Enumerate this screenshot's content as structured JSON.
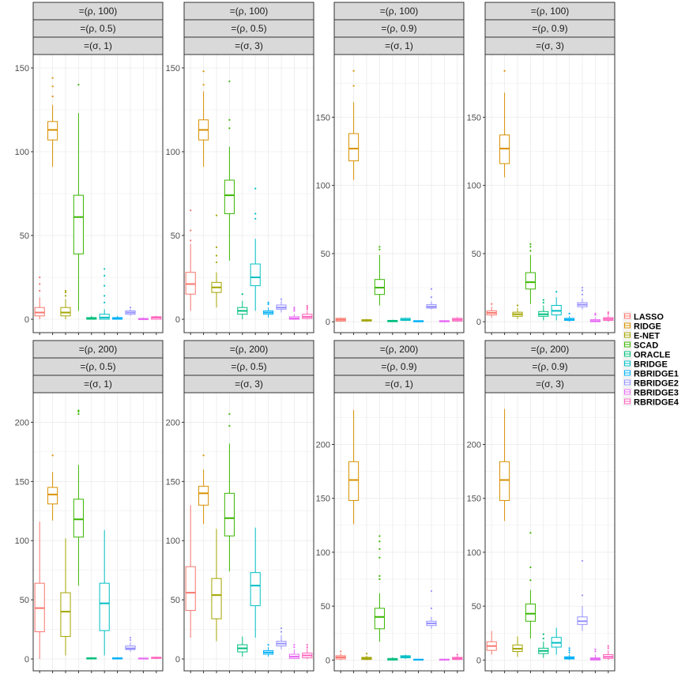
{
  "chart_data": [
    {
      "type": "box",
      "strips": [
        "=(ρ, 100)",
        "=(ρ, 0.5)",
        "=(σ, 1)"
      ],
      "yticks": [
        0,
        50,
        100,
        150
      ],
      "ylim": [
        -8,
        158
      ],
      "boxes": [
        {
          "name": "LASSO",
          "q1": 2,
          "median": 4,
          "q3": 7,
          "wlo": 0,
          "whi": 13,
          "outliers": [
            17,
            21,
            25
          ]
        },
        {
          "name": "RIDGE",
          "q1": 107,
          "median": 113,
          "q3": 118,
          "wlo": 91,
          "whi": 128,
          "outliers": [
            133,
            139,
            144
          ]
        },
        {
          "name": "E-NET",
          "q1": 2,
          "median": 4,
          "q3": 7,
          "wlo": 0,
          "whi": 12,
          "outliers": [
            14,
            16,
            17
          ]
        },
        {
          "name": "SCAD",
          "q1": 39,
          "median": 61,
          "q3": 74,
          "wlo": 5,
          "whi": 123,
          "outliers": [
            140
          ]
        },
        {
          "name": "ORACLE",
          "q1": 0,
          "median": 0.5,
          "q3": 1,
          "wlo": 0,
          "whi": 2,
          "outliers": []
        },
        {
          "name": "BRIDGE",
          "q1": 0,
          "median": 1,
          "q3": 3,
          "wlo": 0,
          "whi": 6,
          "outliers": [
            10,
            14,
            20,
            26,
            30
          ]
        },
        {
          "name": "RBRIDGE1",
          "q1": 0,
          "median": 0.5,
          "q3": 1,
          "wlo": 0,
          "whi": 2,
          "outliers": []
        },
        {
          "name": "RBRIDGE2",
          "q1": 3,
          "median": 4,
          "q3": 5,
          "wlo": 2,
          "whi": 6,
          "outliers": [
            7
          ]
        },
        {
          "name": "RBRIDGE3",
          "q1": 0,
          "median": 0,
          "q3": 0.5,
          "wlo": 0,
          "whi": 1,
          "outliers": []
        },
        {
          "name": "RBRIDGE4",
          "q1": 0,
          "median": 1,
          "q3": 1.5,
          "wlo": 0,
          "whi": 2,
          "outliers": []
        }
      ]
    },
    {
      "type": "box",
      "strips": [
        "=(ρ, 100)",
        "=(ρ, 0.5)",
        "=(σ, 3)"
      ],
      "yticks": [
        0,
        50,
        100,
        150
      ],
      "ylim": [
        -8,
        158
      ],
      "boxes": [
        {
          "name": "LASSO",
          "q1": 15,
          "median": 21,
          "q3": 28,
          "wlo": 5,
          "whi": 45,
          "outliers": [
            47,
            53,
            65
          ]
        },
        {
          "name": "RIDGE",
          "q1": 107,
          "median": 113,
          "q3": 119,
          "wlo": 91,
          "whi": 136,
          "outliers": [
            140,
            148
          ]
        },
        {
          "name": "E-NET",
          "q1": 16,
          "median": 19,
          "q3": 22,
          "wlo": 7,
          "whi": 28,
          "outliers": [
            34,
            38,
            43,
            62
          ]
        },
        {
          "name": "SCAD",
          "q1": 63,
          "median": 74,
          "q3": 83,
          "wlo": 35,
          "whi": 103,
          "outliers": [
            114,
            119,
            142
          ]
        },
        {
          "name": "ORACLE",
          "q1": 3,
          "median": 5,
          "q3": 7,
          "wlo": 0,
          "whi": 11,
          "outliers": [
            15
          ]
        },
        {
          "name": "BRIDGE",
          "q1": 20,
          "median": 25,
          "q3": 33,
          "wlo": 5,
          "whi": 48,
          "outliers": [
            60,
            63,
            78
          ]
        },
        {
          "name": "RBRIDGE1",
          "q1": 3,
          "median": 4,
          "q3": 5,
          "wlo": 1,
          "whi": 7,
          "outliers": [
            9,
            10
          ]
        },
        {
          "name": "RBRIDGE2",
          "q1": 6,
          "median": 7,
          "q3": 8.5,
          "wlo": 4,
          "whi": 11,
          "outliers": [
            12
          ]
        },
        {
          "name": "RBRIDGE3",
          "q1": 0,
          "median": 0.5,
          "q3": 1.5,
          "wlo": 0,
          "whi": 3,
          "outliers": [
            5,
            6,
            7
          ]
        },
        {
          "name": "RBRIDGE4",
          "q1": 0.5,
          "median": 1.5,
          "q3": 3,
          "wlo": 0,
          "whi": 5,
          "outliers": [
            6,
            7,
            8
          ]
        }
      ]
    },
    {
      "type": "box",
      "strips": [
        "=(ρ, 100)",
        "=(ρ, 0.9)",
        "=(σ, 1)"
      ],
      "yticks": [
        0,
        50,
        100,
        150
      ],
      "ylim": [
        -8,
        196
      ],
      "boxes": [
        {
          "name": "LASSO",
          "q1": 0.5,
          "median": 1.5,
          "q3": 2.5,
          "wlo": 0,
          "whi": 3,
          "outliers": []
        },
        {
          "name": "RIDGE",
          "q1": 118,
          "median": 127,
          "q3": 138,
          "wlo": 104,
          "whi": 161,
          "outliers": [
            173,
            184
          ]
        },
        {
          "name": "E-NET",
          "q1": 0.5,
          "median": 1,
          "q3": 1.5,
          "wlo": 0,
          "whi": 2,
          "outliers": []
        },
        {
          "name": "SCAD",
          "q1": 20,
          "median": 25,
          "q3": 31,
          "wlo": 12,
          "whi": 49,
          "outliers": [
            53,
            55
          ]
        },
        {
          "name": "ORACLE",
          "q1": 0,
          "median": 0.5,
          "q3": 1,
          "wlo": 0,
          "whi": 1.5,
          "outliers": []
        },
        {
          "name": "BRIDGE",
          "q1": 1,
          "median": 1.5,
          "q3": 2.5,
          "wlo": 0.5,
          "whi": 3,
          "outliers": []
        },
        {
          "name": "RBRIDGE1",
          "q1": 0,
          "median": 0.3,
          "q3": 0.8,
          "wlo": 0,
          "whi": 1,
          "outliers": []
        },
        {
          "name": "RBRIDGE2",
          "q1": 10,
          "median": 11,
          "q3": 12.5,
          "wlo": 9,
          "whi": 15,
          "outliers": [
            18,
            24
          ]
        },
        {
          "name": "RBRIDGE3",
          "q1": 0,
          "median": 0.3,
          "q3": 0.8,
          "wlo": 0,
          "whi": 1,
          "outliers": []
        },
        {
          "name": "RBRIDGE4",
          "q1": 0.5,
          "median": 1.5,
          "q3": 2.5,
          "wlo": 0,
          "whi": 3.5,
          "outliers": []
        }
      ]
    },
    {
      "type": "box",
      "strips": [
        "=(ρ, 100)",
        "=(ρ, 0.9)",
        "=(σ, 3)"
      ],
      "yticks": [
        0,
        50,
        100,
        150
      ],
      "ylim": [
        -8,
        196
      ],
      "boxes": [
        {
          "name": "LASSO",
          "q1": 5,
          "median": 6.5,
          "q3": 8,
          "wlo": 3,
          "whi": 11,
          "outliers": [
            13
          ]
        },
        {
          "name": "RIDGE",
          "q1": 116,
          "median": 127,
          "q3": 137,
          "wlo": 106,
          "whi": 168,
          "outliers": [
            184
          ]
        },
        {
          "name": "E-NET",
          "q1": 4,
          "median": 5.5,
          "q3": 7,
          "wlo": 2,
          "whi": 10,
          "outliers": [
            12
          ]
        },
        {
          "name": "SCAD",
          "q1": 24,
          "median": 29,
          "q3": 36,
          "wlo": 13,
          "whi": 49,
          "outliers": [
            52,
            55,
            57
          ]
        },
        {
          "name": "ORACLE",
          "q1": 4,
          "median": 5.5,
          "q3": 7.5,
          "wlo": 1,
          "whi": 12,
          "outliers": [
            14,
            16
          ]
        },
        {
          "name": "BRIDGE",
          "q1": 5,
          "median": 8,
          "q3": 12,
          "wlo": 1,
          "whi": 18,
          "outliers": [
            22
          ]
        },
        {
          "name": "RBRIDGE1",
          "q1": 1,
          "median": 1.5,
          "q3": 2.5,
          "wlo": 0,
          "whi": 4,
          "outliers": [
            6
          ]
        },
        {
          "name": "RBRIDGE2",
          "q1": 11,
          "median": 12.5,
          "q3": 14,
          "wlo": 9,
          "whi": 17,
          "outliers": [
            20,
            23,
            25
          ]
        },
        {
          "name": "RBRIDGE3",
          "q1": 0,
          "median": 0.5,
          "q3": 1.5,
          "wlo": 0,
          "whi": 3,
          "outliers": [
            5,
            6
          ]
        },
        {
          "name": "RBRIDGE4",
          "q1": 1,
          "median": 2,
          "q3": 3,
          "wlo": 0,
          "whi": 5,
          "outliers": [
            6,
            7
          ]
        }
      ]
    },
    {
      "type": "box",
      "strips": [
        "=(ρ, 200)",
        "=(ρ, 0.5)",
        "=(σ, 1)"
      ],
      "yticks": [
        0,
        50,
        100,
        150,
        200
      ],
      "ylim": [
        -10,
        225
      ],
      "boxes": [
        {
          "name": "LASSO",
          "q1": 23,
          "median": 43,
          "q3": 64,
          "wlo": 0,
          "whi": 116,
          "outliers": []
        },
        {
          "name": "RIDGE",
          "q1": 131,
          "median": 139,
          "q3": 145,
          "wlo": 117,
          "whi": 158,
          "outliers": [
            172
          ]
        },
        {
          "name": "E-NET",
          "q1": 19,
          "median": 40,
          "q3": 56,
          "wlo": 3,
          "whi": 102,
          "outliers": []
        },
        {
          "name": "SCAD",
          "q1": 103,
          "median": 118,
          "q3": 135,
          "wlo": 62,
          "whi": 164,
          "outliers": [
            207,
            209,
            210
          ]
        },
        {
          "name": "ORACLE",
          "q1": 0,
          "median": 0.5,
          "q3": 1,
          "wlo": 0,
          "whi": 1.5,
          "outliers": []
        },
        {
          "name": "BRIDGE",
          "q1": 24,
          "median": 47,
          "q3": 64,
          "wlo": 3,
          "whi": 109,
          "outliers": []
        },
        {
          "name": "RBRIDGE1",
          "q1": 0,
          "median": 0.5,
          "q3": 1,
          "wlo": 0,
          "whi": 1.5,
          "outliers": []
        },
        {
          "name": "RBRIDGE2",
          "q1": 8,
          "median": 9,
          "q3": 11,
          "wlo": 6,
          "whi": 14,
          "outliers": [
            16,
            18
          ]
        },
        {
          "name": "RBRIDGE3",
          "q1": 0,
          "median": 0.3,
          "q3": 0.8,
          "wlo": 0,
          "whi": 1,
          "outliers": []
        },
        {
          "name": "RBRIDGE4",
          "q1": 0.5,
          "median": 1,
          "q3": 1.5,
          "wlo": 0,
          "whi": 2,
          "outliers": []
        }
      ]
    },
    {
      "type": "box",
      "strips": [
        "=(ρ, 200)",
        "=(ρ, 0.5)",
        "=(σ, 3)"
      ],
      "yticks": [
        0,
        50,
        100,
        150,
        200
      ],
      "ylim": [
        -10,
        225
      ],
      "boxes": [
        {
          "name": "LASSO",
          "q1": 41,
          "median": 56,
          "q3": 78,
          "wlo": 18,
          "whi": 130,
          "outliers": []
        },
        {
          "name": "RIDGE",
          "q1": 130,
          "median": 140,
          "q3": 146,
          "wlo": 114,
          "whi": 160,
          "outliers": [
            172
          ]
        },
        {
          "name": "E-NET",
          "q1": 34,
          "median": 54,
          "q3": 68,
          "wlo": 15,
          "whi": 110,
          "outliers": []
        },
        {
          "name": "SCAD",
          "q1": 104,
          "median": 119,
          "q3": 140,
          "wlo": 74,
          "whi": 182,
          "outliers": [
            197,
            207
          ]
        },
        {
          "name": "ORACLE",
          "q1": 6,
          "median": 9,
          "q3": 12,
          "wlo": 2,
          "whi": 19,
          "outliers": []
        },
        {
          "name": "BRIDGE",
          "q1": 45,
          "median": 62,
          "q3": 73,
          "wlo": 18,
          "whi": 111,
          "outliers": []
        },
        {
          "name": "RBRIDGE1",
          "q1": 4,
          "median": 5.5,
          "q3": 7,
          "wlo": 2,
          "whi": 10,
          "outliers": [
            12
          ]
        },
        {
          "name": "RBRIDGE2",
          "q1": 11,
          "median": 13,
          "q3": 15,
          "wlo": 8,
          "whi": 20,
          "outliers": [
            23,
            26
          ]
        },
        {
          "name": "RBRIDGE3",
          "q1": 0.5,
          "median": 2,
          "q3": 4,
          "wlo": 0,
          "whi": 8,
          "outliers": [
            10,
            12
          ]
        },
        {
          "name": "RBRIDGE4",
          "q1": 1,
          "median": 3,
          "q3": 5,
          "wlo": 0,
          "whi": 9,
          "outliers": [
            10,
            12
          ]
        }
      ]
    },
    {
      "type": "box",
      "strips": [
        "=(ρ, 200)",
        "=(ρ, 0.9)",
        "=(σ, 1)"
      ],
      "yticks": [
        0,
        50,
        100,
        150,
        200
      ],
      "ylim": [
        -10,
        248
      ],
      "boxes": [
        {
          "name": "LASSO",
          "q1": 1,
          "median": 2.5,
          "q3": 4,
          "wlo": 0,
          "whi": 6,
          "outliers": [
            8
          ]
        },
        {
          "name": "RIDGE",
          "q1": 148,
          "median": 167,
          "q3": 184,
          "wlo": 126,
          "whi": 232,
          "outliers": []
        },
        {
          "name": "E-NET",
          "q1": 0.5,
          "median": 1.5,
          "q3": 2.5,
          "wlo": 0,
          "whi": 4,
          "outliers": [
            6
          ]
        },
        {
          "name": "SCAD",
          "q1": 29,
          "median": 40,
          "q3": 48,
          "wlo": 17,
          "whi": 62,
          "outliers": [
            75,
            78,
            95,
            103,
            110,
            115
          ]
        },
        {
          "name": "ORACLE",
          "q1": 0,
          "median": 0.5,
          "q3": 1.5,
          "wlo": 0,
          "whi": 2.5,
          "outliers": []
        },
        {
          "name": "BRIDGE",
          "q1": 2,
          "median": 3,
          "q3": 4,
          "wlo": 1,
          "whi": 5,
          "outliers": []
        },
        {
          "name": "RBRIDGE1",
          "q1": 0,
          "median": 0.3,
          "q3": 0.8,
          "wlo": 0,
          "whi": 1,
          "outliers": []
        },
        {
          "name": "RBRIDGE2",
          "q1": 32,
          "median": 34,
          "q3": 36,
          "wlo": 29,
          "whi": 40,
          "outliers": [
            48,
            64
          ]
        },
        {
          "name": "RBRIDGE3",
          "q1": 0,
          "median": 0.3,
          "q3": 0.8,
          "wlo": 0,
          "whi": 1,
          "outliers": []
        },
        {
          "name": "RBRIDGE4",
          "q1": 0.5,
          "median": 1.5,
          "q3": 2.5,
          "wlo": 0,
          "whi": 4,
          "outliers": [
            5
          ]
        }
      ]
    },
    {
      "type": "box",
      "strips": [
        "=(ρ, 200)",
        "=(ρ, 0.9)",
        "=(σ, 3)"
      ],
      "yticks": [
        0,
        50,
        100,
        150,
        200
      ],
      "ylim": [
        -10,
        248
      ],
      "boxes": [
        {
          "name": "LASSO",
          "q1": 9,
          "median": 13,
          "q3": 17,
          "wlo": 5,
          "whi": 27,
          "outliers": []
        },
        {
          "name": "RIDGE",
          "q1": 148,
          "median": 167,
          "q3": 184,
          "wlo": 129,
          "whi": 233,
          "outliers": []
        },
        {
          "name": "E-NET",
          "q1": 8,
          "median": 10.5,
          "q3": 14,
          "wlo": 3,
          "whi": 22,
          "outliers": []
        },
        {
          "name": "SCAD",
          "q1": 36,
          "median": 43,
          "q3": 52,
          "wlo": 20,
          "whi": 65,
          "outliers": [
            74,
            86,
            118
          ]
        },
        {
          "name": "ORACLE",
          "q1": 6,
          "median": 8.5,
          "q3": 11,
          "wlo": 2,
          "whi": 17,
          "outliers": [
            20,
            24
          ]
        },
        {
          "name": "BRIDGE",
          "q1": 12,
          "median": 16,
          "q3": 21,
          "wlo": 5,
          "whi": 30,
          "outliers": []
        },
        {
          "name": "RBRIDGE1",
          "q1": 1,
          "median": 2,
          "q3": 3,
          "wlo": 0,
          "whi": 5,
          "outliers": [
            7,
            9,
            11
          ]
        },
        {
          "name": "RBRIDGE2",
          "q1": 33,
          "median": 36,
          "q3": 40,
          "wlo": 27,
          "whi": 50,
          "outliers": [
            60,
            92
          ]
        },
        {
          "name": "RBRIDGE3",
          "q1": 0,
          "median": 1,
          "q3": 2,
          "wlo": 0,
          "whi": 5,
          "outliers": [
            8,
            10
          ]
        },
        {
          "name": "RBRIDGE4",
          "q1": 1.5,
          "median": 3,
          "q3": 5,
          "wlo": 0,
          "whi": 9,
          "outliers": [
            11,
            13
          ]
        }
      ]
    }
  ],
  "legend": {
    "items": [
      {
        "label": "LASSO",
        "color": "#F8766D"
      },
      {
        "label": "RIDGE",
        "color": "#D89000"
      },
      {
        "label": "E-NET",
        "color": "#A3A500"
      },
      {
        "label": "SCAD",
        "color": "#39B600"
      },
      {
        "label": "ORACLE",
        "color": "#00BF7D"
      },
      {
        "label": "BRIDGE",
        "color": "#00BFC4"
      },
      {
        "label": "RBRIDGE1",
        "color": "#00B0F6"
      },
      {
        "label": "RBRIDGE2",
        "color": "#9590FF"
      },
      {
        "label": "RBRIDGE3",
        "color": "#E76BF3"
      },
      {
        "label": "RBRIDGE4",
        "color": "#FF62BC"
      }
    ]
  }
}
